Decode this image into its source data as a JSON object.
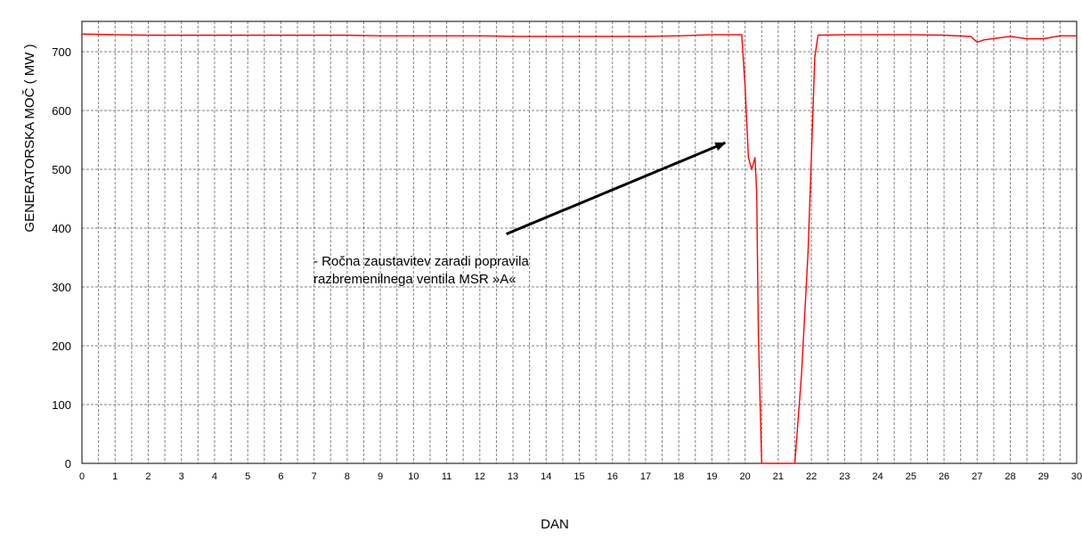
{
  "chart_data": {
    "type": "line",
    "title": "",
    "xlabel": "DAN",
    "ylabel": "GENERATORSKA MOČ ( MW )",
    "xlim": [
      0,
      30
    ],
    "ylim": [
      0,
      750
    ],
    "x_ticks": [
      0,
      1,
      2,
      3,
      4,
      5,
      6,
      7,
      8,
      9,
      10,
      11,
      12,
      13,
      14,
      15,
      16,
      17,
      18,
      19,
      20,
      21,
      22,
      23,
      24,
      25,
      26,
      27,
      28,
      29,
      30
    ],
    "y_ticks": [
      0,
      100,
      200,
      300,
      400,
      500,
      600,
      700
    ],
    "grid": true,
    "legend": "none",
    "line_color": "#ff0000",
    "series": [
      {
        "x": [
          0,
          1,
          2,
          3,
          4,
          5,
          6,
          7,
          8,
          9,
          10,
          11,
          12,
          13,
          14,
          15,
          16,
          17,
          18,
          19,
          19.9,
          20.0,
          20.1,
          20.2,
          20.3,
          20.35,
          20.4,
          20.5,
          20.6,
          21.0,
          21.4,
          21.5,
          21.7,
          21.9,
          22.0,
          22.1,
          22.2,
          23,
          24,
          25,
          26,
          26.8,
          27.0,
          27.2,
          28,
          28.5,
          29,
          29.5,
          30
        ],
        "y": [
          730,
          729,
          728,
          728,
          728,
          728,
          728,
          728,
          728,
          727,
          727,
          727,
          727,
          726,
          726,
          726,
          726,
          726,
          727,
          729,
          729,
          640,
          520,
          500,
          520,
          460,
          220,
          0,
          0,
          0,
          0,
          0,
          150,
          360,
          520,
          690,
          728,
          729,
          729,
          729,
          728,
          726,
          716,
          720,
          726,
          722,
          722,
          727,
          727
        ]
      }
    ],
    "annotation": {
      "lines": [
        "- Ročna zaustavitev zaradi popravila",
        "razbremenilnega ventila MSR »A«"
      ],
      "arrow_from": [
        12.8,
        390
      ],
      "arrow_to": [
        19.4,
        545
      ]
    }
  }
}
